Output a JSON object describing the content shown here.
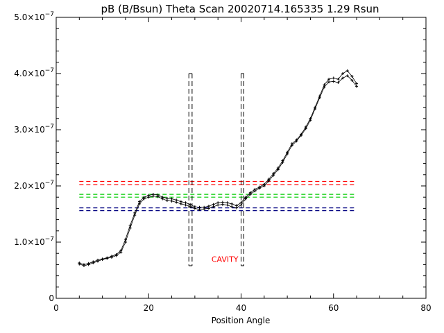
{
  "chart_data": {
    "type": "scatter",
    "title": "pB (B/Bsun) Theta Scan 20020714.165335 1.29 Rsun",
    "xlabel": "Position Angle",
    "ylabel": "",
    "xlim": [
      0,
      80
    ],
    "ylim": [
      0,
      5e-07
    ],
    "grid": false,
    "x_ticks": [
      0,
      20,
      40,
      60,
      80
    ],
    "x_tick_labels": [
      "0",
      "20",
      "40",
      "60",
      "80"
    ],
    "y_ticks": [
      0,
      1e-07,
      2e-07,
      3e-07,
      4e-07,
      5e-07
    ],
    "y_tick_labels": [
      {
        "mantissa": "0",
        "exponent": ""
      },
      {
        "mantissa": "1.0×10",
        "exponent": "−7"
      },
      {
        "mantissa": "2.0×10",
        "exponent": "−7"
      },
      {
        "mantissa": "3.0×10",
        "exponent": "−7"
      },
      {
        "mantissa": "4.0×10",
        "exponent": "−7"
      },
      {
        "mantissa": "5.0×10",
        "exponent": "−7"
      }
    ],
    "series": [
      {
        "marker": "plus",
        "color": "#000000",
        "x": [
          5,
          6,
          7,
          8,
          9,
          10,
          11,
          12,
          13,
          14,
          15,
          16,
          17,
          18,
          19,
          20,
          21,
          22,
          23,
          24,
          25,
          26,
          27,
          28,
          29,
          30,
          31,
          32,
          33,
          34,
          35,
          36,
          37,
          38,
          39,
          40,
          41,
          42,
          43,
          44,
          45,
          46,
          47,
          48,
          49,
          50,
          51,
          52,
          53,
          54,
          55,
          56,
          57,
          58,
          59,
          60,
          61,
          62,
          63,
          64,
          65
        ],
        "y": [
          6.3e-08,
          6e-08,
          6.2e-08,
          6.5e-08,
          6.8e-08,
          7e-08,
          7.2e-08,
          7.5e-08,
          7.8e-08,
          8.5e-08,
          1.05e-07,
          1.3e-07,
          1.52e-07,
          1.72e-07,
          1.8e-07,
          1.83e-07,
          1.85e-07,
          1.84e-07,
          1.8e-07,
          1.78e-07,
          1.77e-07,
          1.75e-07,
          1.72e-07,
          1.7e-07,
          1.67e-07,
          1.63e-07,
          1.62e-07,
          1.62e-07,
          1.64e-07,
          1.67e-07,
          1.7e-07,
          1.71e-07,
          1.7e-07,
          1.68e-07,
          1.65e-07,
          1.7e-07,
          1.8e-07,
          1.88e-07,
          1.94e-07,
          1.98e-07,
          2.03e-07,
          2.12e-07,
          2.22e-07,
          2.32e-07,
          2.45e-07,
          2.6e-07,
          2.75e-07,
          2.82e-07,
          2.92e-07,
          3.05e-07,
          3.2e-07,
          3.4e-07,
          3.6e-07,
          3.8e-07,
          3.9e-07,
          3.92e-07,
          3.9e-07,
          4e-07,
          4.05e-07,
          3.95e-07,
          3.82e-07
        ]
      },
      {
        "marker": "plus",
        "color": "#000000",
        "x": [
          5,
          6,
          7,
          8,
          9,
          10,
          11,
          12,
          13,
          14,
          15,
          16,
          17,
          18,
          19,
          20,
          21,
          22,
          23,
          24,
          25,
          26,
          27,
          28,
          29,
          30,
          31,
          32,
          33,
          34,
          35,
          36,
          37,
          38,
          39,
          40,
          41,
          42,
          43,
          44,
          45,
          46,
          47,
          48,
          49,
          50,
          51,
          52,
          53,
          54,
          55,
          56,
          57,
          58,
          59,
          60,
          61,
          62,
          63,
          64,
          65
        ],
        "y": [
          6.1e-08,
          5.8e-08,
          6e-08,
          6.3e-08,
          6.6e-08,
          6.9e-08,
          7.1e-08,
          7.3e-08,
          7.6e-08,
          8.2e-08,
          1e-07,
          1.25e-07,
          1.48e-07,
          1.68e-07,
          1.77e-07,
          1.8e-07,
          1.82e-07,
          1.81e-07,
          1.77e-07,
          1.74e-07,
          1.73e-07,
          1.71e-07,
          1.68e-07,
          1.66e-07,
          1.63e-07,
          1.6e-07,
          1.58e-07,
          1.59e-07,
          1.6e-07,
          1.63e-07,
          1.66e-07,
          1.67e-07,
          1.66e-07,
          1.63e-07,
          1.61e-07,
          1.66e-07,
          1.77e-07,
          1.85e-07,
          1.91e-07,
          1.96e-07,
          2e-07,
          2.09e-07,
          2.19e-07,
          2.29e-07,
          2.42e-07,
          2.57e-07,
          2.72e-07,
          2.8e-07,
          2.9e-07,
          3.02e-07,
          3.17e-07,
          3.37e-07,
          3.57e-07,
          3.76e-07,
          3.85e-07,
          3.86e-07,
          3.84e-07,
          3.92e-07,
          3.96e-07,
          3.88e-07,
          3.77e-07
        ]
      }
    ],
    "reference_lines": [
      {
        "color": "#ff0000",
        "y_values": [
          2.02e-07,
          2.08e-07
        ],
        "x_range": [
          5,
          65
        ]
      },
      {
        "color": "#00cc00",
        "y_values": [
          1.8e-07,
          1.85e-07
        ],
        "x_range": [
          5,
          65
        ]
      },
      {
        "color": "#000080",
        "y_values": [
          1.56e-07,
          1.61e-07
        ],
        "x_range": [
          5,
          65
        ]
      }
    ],
    "vertical_boxes": [
      {
        "color": "#000000",
        "x_range": [
          28.7,
          29.4
        ],
        "y_range": [
          5.8e-08,
          4e-07
        ]
      },
      {
        "color": "#000000",
        "x_range": [
          40.0,
          40.6
        ],
        "y_range": [
          5.8e-08,
          4e-07
        ]
      }
    ],
    "annotations": [
      {
        "text": "CAVITY",
        "x": 36.5,
        "y": 6.5e-08,
        "color": "#ff0000"
      }
    ]
  }
}
